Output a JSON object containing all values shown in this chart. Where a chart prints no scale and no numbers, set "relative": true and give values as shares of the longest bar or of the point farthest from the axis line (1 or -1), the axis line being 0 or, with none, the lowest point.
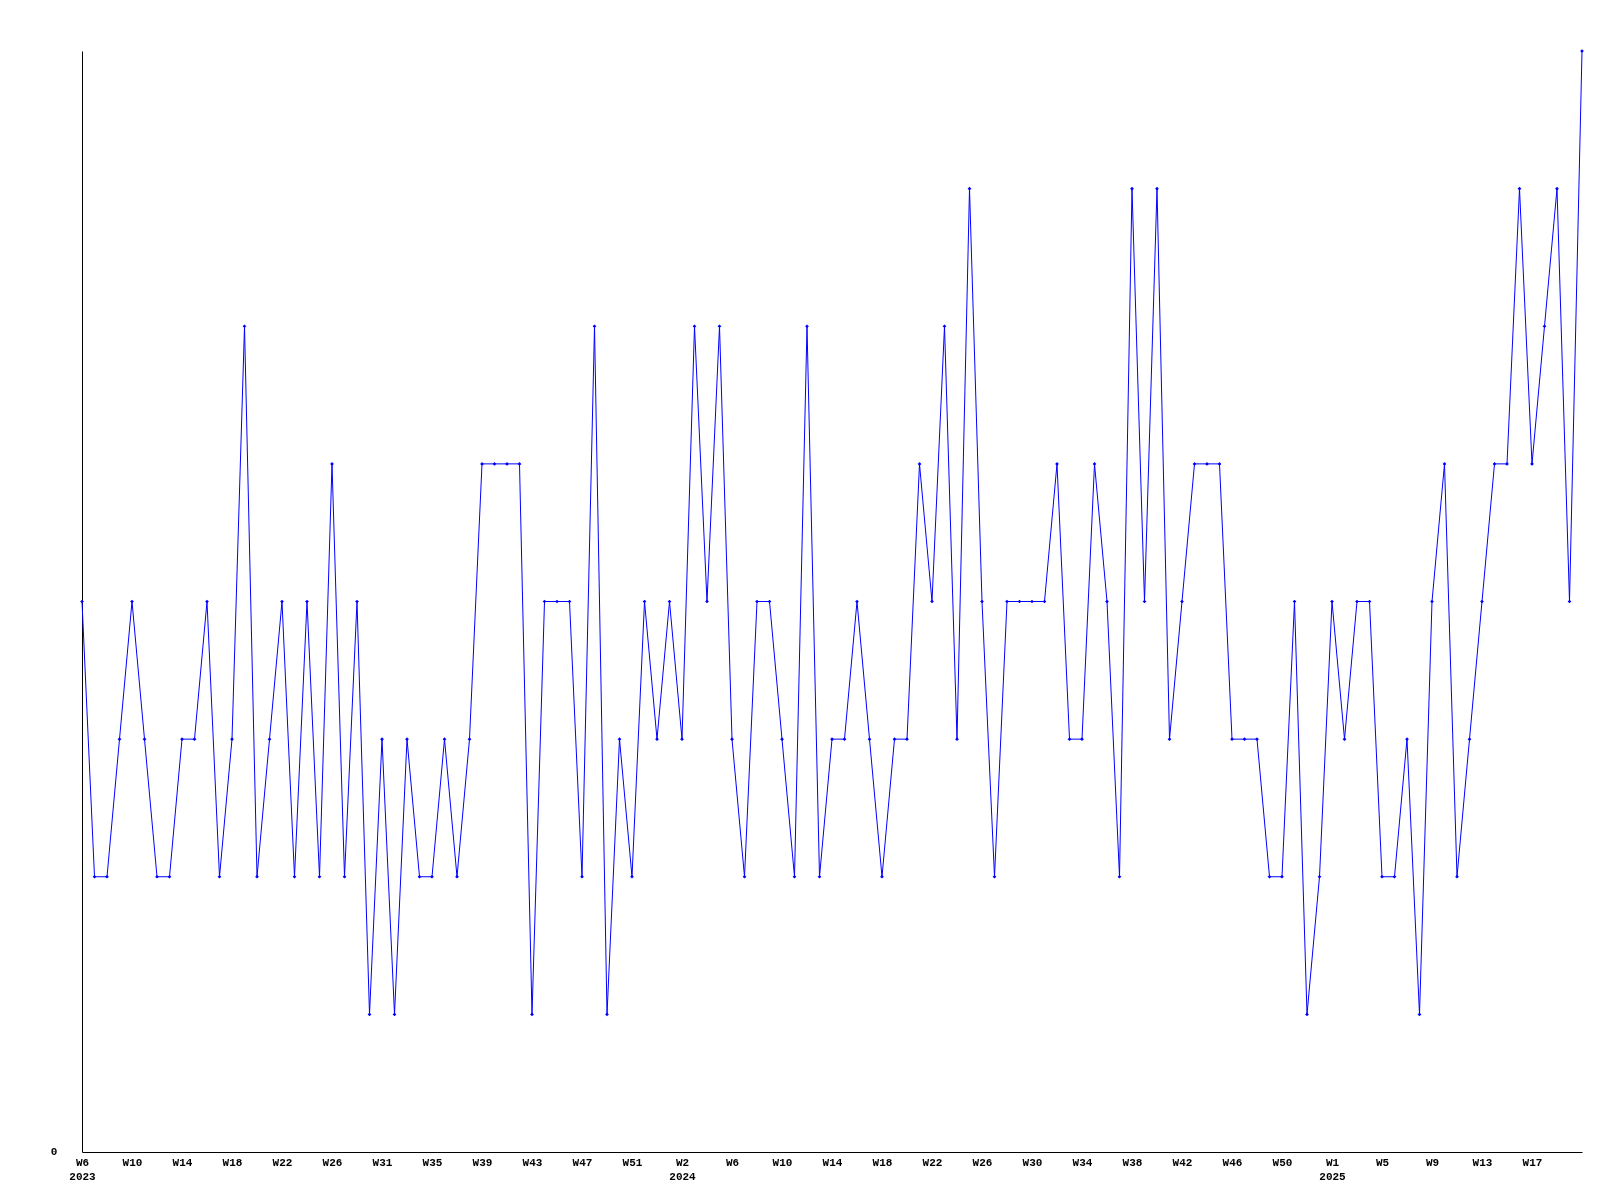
{
  "chart_data": {
    "type": "line",
    "relative": true,
    "marker": "diamond",
    "grid": false,
    "annotations": [
      "0"
    ],
    "categories": [
      "W6\n2023",
      null,
      null,
      null,
      "W10",
      null,
      null,
      null,
      "W14",
      null,
      null,
      null,
      "W18",
      null,
      null,
      null,
      "W22",
      null,
      null,
      null,
      "W26",
      null,
      null,
      null,
      "W31",
      null,
      null,
      null,
      "W35",
      null,
      null,
      null,
      "W39",
      null,
      null,
      null,
      "W43",
      null,
      null,
      null,
      "W47",
      null,
      null,
      null,
      "W51",
      null,
      null,
      null,
      "W2\n2024",
      null,
      null,
      null,
      "W6",
      null,
      null,
      null,
      "W10",
      null,
      null,
      null,
      "W14",
      null,
      null,
      null,
      "W18",
      null,
      null,
      null,
      "W22",
      null,
      null,
      null,
      "W26",
      null,
      null,
      null,
      "W30",
      null,
      null,
      null,
      "W34",
      null,
      null,
      null,
      "W38",
      null,
      null,
      null,
      "W42",
      null,
      null,
      null,
      "W46",
      null,
      null,
      null,
      "W50",
      null,
      null,
      null,
      "W1\n2025",
      null,
      null,
      null,
      "W5",
      null,
      null,
      null,
      "W9",
      null,
      null,
      null,
      "W13",
      null,
      null,
      null,
      "W17",
      null,
      null,
      null,
      null
    ],
    "series": [
      {
        "color": "#0000ff",
        "values": [
          0.5,
          0.25,
          0.25,
          0.375,
          0.5,
          0.375,
          0.25,
          0.25,
          0.375,
          0.375,
          0.5,
          0.25,
          0.375,
          0.75,
          0.25,
          0.375,
          0.5,
          0.25,
          0.5,
          0.25,
          0.625,
          0.25,
          0.5,
          0.125,
          0.375,
          0.125,
          0.375,
          0.25,
          0.25,
          0.375,
          0.25,
          0.375,
          0.625,
          0.625,
          0.625,
          0.625,
          0.125,
          0.5,
          0.5,
          0.5,
          0.25,
          0.75,
          0.125,
          0.375,
          0.25,
          0.5,
          0.375,
          0.5,
          0.375,
          0.75,
          0.5,
          0.75,
          0.375,
          0.25,
          0.5,
          0.5,
          0.375,
          0.25,
          0.75,
          0.25,
          0.375,
          0.375,
          0.5,
          0.375,
          0.25,
          0.375,
          0.375,
          0.625,
          0.5,
          0.75,
          0.375,
          0.875,
          0.5,
          0.25,
          0.5,
          0.5,
          0.5,
          0.5,
          0.625,
          0.375,
          0.375,
          0.625,
          0.5,
          0.25,
          0.875,
          0.5,
          0.875,
          0.375,
          0.5,
          0.625,
          0.625,
          0.625,
          0.375,
          0.375,
          0.375,
          0.25,
          0.25,
          0.5,
          0.125,
          0.25,
          0.5,
          0.375,
          0.5,
          0.5,
          0.25,
          0.25,
          0.375,
          0.125,
          0.5,
          0.625,
          0.25,
          0.375,
          0.5,
          0.625,
          0.625,
          0.875,
          0.625,
          0.75,
          0.875,
          0.5,
          1
        ]
      }
    ]
  }
}
